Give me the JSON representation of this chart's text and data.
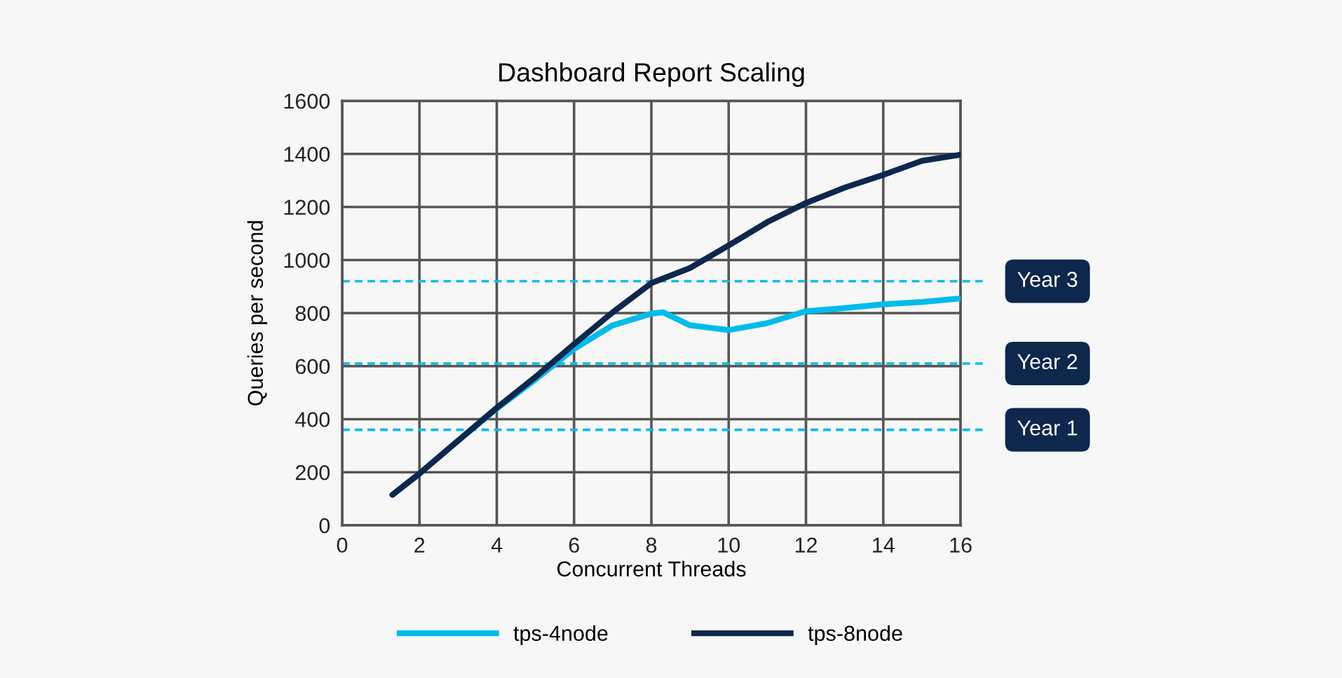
{
  "chart_data": {
    "type": "line",
    "title": "Dashboard Report Scaling",
    "xlabel": "Concurrent Threads",
    "ylabel": "Queries per second",
    "xlim": [
      0,
      16
    ],
    "xticks": [
      0,
      2,
      4,
      6,
      8,
      10,
      12,
      14,
      16
    ],
    "ylim": [
      0,
      1600
    ],
    "yticks": [
      0,
      200,
      400,
      600,
      800,
      1000,
      1200,
      1400,
      1600
    ],
    "grid": true,
    "legend": "bottom",
    "line_style": "solid",
    "marker": "none",
    "series": [
      {
        "name": "tps-4node",
        "color": "#00bceb",
        "x": [
          1.3,
          2,
          3,
          4,
          5,
          6,
          7,
          8,
          8.3,
          9,
          10,
          11,
          12,
          13,
          14,
          15,
          16
        ],
        "values": [
          115,
          195,
          319,
          440,
          550,
          665,
          754,
          798,
          803,
          754,
          736,
          762,
          807,
          819,
          833,
          842,
          855
        ]
      },
      {
        "name": "tps-8node",
        "color": "#0d274d",
        "x": [
          1.3,
          2,
          3,
          4,
          5,
          6,
          7,
          8,
          9,
          10,
          11,
          12,
          13,
          14,
          15,
          16
        ],
        "values": [
          115,
          195,
          319,
          443,
          559,
          683,
          803,
          913,
          970,
          1055,
          1143,
          1215,
          1273,
          1321,
          1374,
          1397
        ]
      }
    ],
    "ref_lines": [
      {
        "axis": "y",
        "value": 920,
        "label": "Year 3",
        "color": "#00bceb",
        "line_style": "dashed"
      },
      {
        "axis": "y",
        "value": 610,
        "label": "Year 2",
        "color": "#00bceb",
        "line_style": "dashed"
      },
      {
        "axis": "y",
        "value": 360,
        "label": "Year 1",
        "color": "#00bceb",
        "line_style": "dashed"
      }
    ]
  }
}
